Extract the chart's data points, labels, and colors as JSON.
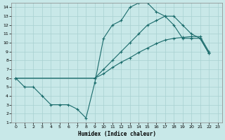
{
  "xlabel": "Humidex (Indice chaleur)",
  "xlim": [
    -0.5,
    23.5
  ],
  "ylim": [
    1,
    14.5
  ],
  "xticks": [
    0,
    1,
    2,
    3,
    4,
    5,
    6,
    7,
    8,
    9,
    10,
    11,
    12,
    13,
    14,
    15,
    16,
    17,
    18,
    19,
    20,
    21,
    22,
    23
  ],
  "yticks": [
    1,
    2,
    3,
    4,
    5,
    6,
    7,
    8,
    9,
    10,
    11,
    12,
    13,
    14
  ],
  "bg_color": "#c8e8e8",
  "line_color": "#1a6b6b",
  "grid_color": "#a8d0d0",
  "line1_x": [
    0,
    1,
    2,
    3,
    4,
    5,
    6,
    7,
    8,
    9,
    10,
    11,
    12,
    13,
    14,
    15,
    16,
    17,
    18,
    19,
    20,
    21,
    22
  ],
  "line1_y": [
    6.0,
    5.0,
    5.0,
    4.0,
    3.0,
    3.0,
    3.0,
    2.5,
    1.5,
    5.5,
    10.5,
    12.0,
    12.5,
    14.0,
    14.5,
    14.5,
    13.5,
    13.0,
    12.0,
    10.5,
    10.5,
    10.5,
    8.8
  ],
  "line2_x": [
    0,
    9,
    10,
    11,
    12,
    13,
    14,
    15,
    16,
    17,
    18,
    19,
    20,
    21,
    22
  ],
  "line2_y": [
    6.0,
    6.0,
    7.0,
    8.0,
    9.0,
    10.0,
    11.0,
    12.0,
    12.5,
    13.0,
    13.0,
    12.0,
    11.0,
    10.5,
    8.8
  ],
  "line3_x": [
    0,
    9,
    10,
    11,
    12,
    13,
    14,
    15,
    16,
    17,
    18,
    19,
    20,
    21,
    22
  ],
  "line3_y": [
    6.0,
    6.0,
    6.5,
    7.2,
    7.8,
    8.3,
    8.9,
    9.4,
    9.9,
    10.3,
    10.5,
    10.6,
    10.7,
    10.7,
    9.0
  ]
}
